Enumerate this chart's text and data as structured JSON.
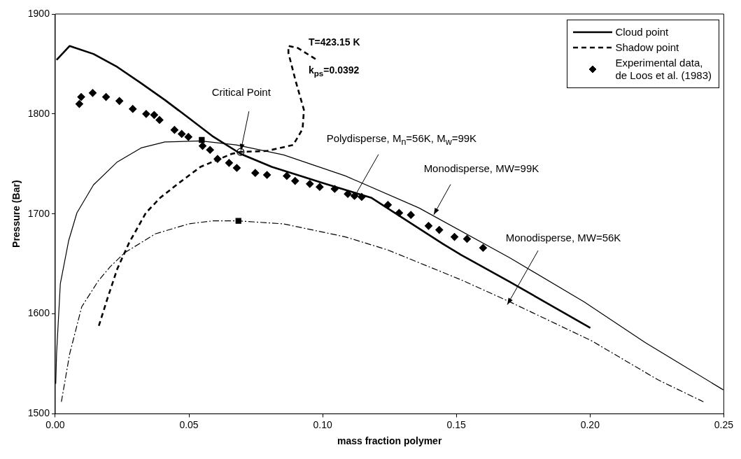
{
  "chart_data": {
    "type": "line",
    "xlabel": "mass fraction polymer",
    "ylabel": "Pressure (Bar)",
    "xlim": [
      0,
      0.25
    ],
    "xticks": [
      {
        "value": 0,
        "label": "0.00"
      },
      {
        "value": 0.05,
        "label": "0.05"
      },
      {
        "value": 0.1,
        "label": "0.10"
      },
      {
        "value": 0.15,
        "label": "0.15"
      },
      {
        "value": 0.2,
        "label": "0.20"
      },
      {
        "value": 0.25,
        "label": "0.25"
      }
    ],
    "ylim": [
      1500,
      1900
    ],
    "yticks": [
      1500,
      1600,
      1700,
      1800,
      1900
    ],
    "legend": "top right",
    "annotations": [
      "T=423.15 K",
      "k$_{ps}$=0.0392",
      {
        "text": "Critical Point",
        "x": 0.0693,
        "y": 1762
      },
      {
        "text": "Polydisperse, M$_{n}$=56K, M$_{w}$=99K",
        "x": 0.1112,
        "y": 1714
      },
      {
        "text": "Monodisperse, MW=99K",
        "x": 0.1413,
        "y": 1698
      },
      {
        "text": "Monodisperse, MW=56K",
        "x": 0.1688,
        "y": 1608
      }
    ],
    "series": [
      {
        "name": "Cloud point",
        "type": "line",
        "color": "#000000",
        "line_style": "solid",
        "marker": "none",
        "x": [
          0.0005,
          0.0054,
          0.0143,
          0.0232,
          0.032,
          0.041,
          0.0499,
          0.0587,
          0.0694,
          0.081,
          0.1,
          0.1183,
          0.145,
          0.1518,
          0.17,
          0.2001
        ],
        "values": [
          1854,
          1868,
          1860,
          1847,
          1831,
          1814,
          1796,
          1778,
          1760,
          1747,
          1731,
          1716,
          1670,
          1659,
          1632,
          1586
        ]
      },
      {
        "name": "Shadow point",
        "type": "line",
        "color": "#000000",
        "line_style": "dashed",
        "marker": "none",
        "x": [
          0.0163,
          0.0196,
          0.0232,
          0.0276,
          0.0339,
          0.0392,
          0.0463,
          0.0543,
          0.0659,
          0.0693,
          0.0792,
          0.089,
          0.0925,
          0.093,
          0.0899,
          0.0872,
          0.0872,
          0.0907,
          0.0979
        ],
        "values": [
          1588,
          1616,
          1645,
          1671,
          1701,
          1716,
          1731,
          1747,
          1760,
          1762,
          1763,
          1769,
          1785,
          1804,
          1833,
          1861,
          1868,
          1866,
          1854
        ]
      },
      {
        "name": "Experimental data, de Loos et al. (1983)",
        "type": "scatter",
        "color": "#000000",
        "marker": "diamond",
        "x": [
          0.009,
          0.0097,
          0.014,
          0.019,
          0.024,
          0.029,
          0.034,
          0.037,
          0.039,
          0.0446,
          0.0473,
          0.0498,
          0.0551,
          0.0579,
          0.0607,
          0.065,
          0.0679,
          0.0748,
          0.0792,
          0.0866,
          0.0897,
          0.0952,
          0.0989,
          0.1045,
          0.1094,
          0.1119,
          0.1146,
          0.1244,
          0.1286,
          0.133,
          0.1396,
          0.1436,
          0.1493,
          0.154,
          0.16
        ],
        "values": [
          1810,
          1817,
          1821,
          1817,
          1813,
          1805,
          1800,
          1799,
          1794,
          1784,
          1780,
          1777,
          1768,
          1764,
          1755,
          1751,
          1746,
          1741,
          1739,
          1738,
          1733,
          1730,
          1727,
          1725,
          1720,
          1718,
          1717,
          1709,
          1701,
          1699,
          1688,
          1684,
          1677,
          1675,
          1666
        ]
      },
      {
        "type": "line",
        "color": "#000000",
        "line_style": "solid",
        "marker": "none",
        "x": [
          0.0002,
          0.0005,
          0.0019,
          0.005,
          0.0081,
          0.0143,
          0.0232,
          0.0321,
          0.041,
          0.0543,
          0.0677,
          0.0854,
          0.1085,
          0.136,
          0.17,
          0.1978,
          0.2208,
          0.2498
        ],
        "values": [
          1530,
          1560,
          1630,
          1673,
          1701,
          1729,
          1752,
          1766,
          1772,
          1773,
          1769,
          1759,
          1738,
          1706,
          1656,
          1612,
          1571,
          1524
        ]
      },
      {
        "type": "line",
        "color": "#000000",
        "line_style": "dashdot",
        "marker": "none",
        "x": [
          0.0023,
          0.0054,
          0.0099,
          0.0161,
          0.0205,
          0.0259,
          0.0374,
          0.0499,
          0.0587,
          0.0685,
          0.0854,
          0.1085,
          0.1243,
          0.1518,
          0.17,
          0.2006,
          0.2254,
          0.2424
        ],
        "values": [
          1512,
          1560,
          1607,
          1633,
          1647,
          1661,
          1680,
          1690,
          1693,
          1693,
          1690,
          1677,
          1664,
          1634,
          1612,
          1573,
          1534,
          1512
        ]
      },
      {
        "type": "scatter",
        "color": "#000000",
        "marker": "square",
        "x": [
          0.0548,
          0.0685
        ],
        "values": [
          1774,
          1693
        ]
      },
      {
        "type": "scatter",
        "color": "#000000",
        "marker": "circle",
        "x": [
          0.0693
        ],
        "values": [
          1762
        ]
      }
    ]
  }
}
